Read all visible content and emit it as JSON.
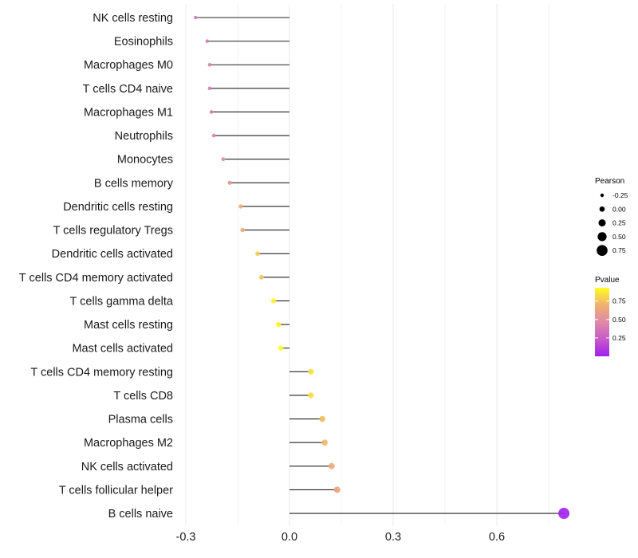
{
  "chart_data": {
    "type": "lollipop",
    "title": "",
    "xlabel": "",
    "ylabel": "",
    "xlim": [
      -0.33,
      0.83
    ],
    "xticks": [
      "-0.3",
      "0.0",
      "0.3",
      "0.6"
    ],
    "xtick_values": [
      -0.3,
      0.0,
      0.3,
      0.6
    ],
    "grid": true,
    "categories": [
      "NK cells resting",
      "Eosinophils",
      "Macrophages M0",
      "T cells CD4 naive",
      "Macrophages M1",
      "Neutrophils",
      "Monocytes",
      "B cells memory",
      "Dendritic cells resting",
      "T cells regulatory  Tregs ",
      "Dendritic cells activated",
      "T cells CD4 memory activated",
      "T cells gamma delta",
      "Mast cells resting",
      "Mast cells activated",
      "T cells CD4 memory resting",
      "T cells CD8",
      "Plasma cells",
      "Macrophages M2",
      "NK cells activated",
      "T cells follicular helper",
      "B cells naive"
    ],
    "pearson": [
      -0.272,
      -0.238,
      -0.231,
      -0.231,
      -0.226,
      -0.219,
      -0.192,
      -0.173,
      -0.141,
      -0.136,
      -0.092,
      -0.081,
      -0.046,
      -0.032,
      -0.025,
      0.062,
      0.062,
      0.095,
      0.102,
      0.122,
      0.138,
      0.794
    ],
    "pvalue": [
      0.36,
      0.38,
      0.4,
      0.4,
      0.4,
      0.42,
      0.5,
      0.55,
      0.68,
      0.68,
      0.78,
      0.76,
      0.88,
      0.9,
      0.92,
      0.84,
      0.84,
      0.74,
      0.72,
      0.66,
      0.62,
      0.001
    ],
    "legend": {
      "position": "right",
      "size_title": "Pearson",
      "size_labels": [
        "-0.25",
        "0.00",
        "0.25",
        "0.50",
        "0.75"
      ],
      "size_values": [
        -0.25,
        0,
        0.25,
        0.5,
        0.75
      ],
      "color_title": "Pvalue",
      "color_labels": [
        "0.75",
        "0.50",
        "0.25"
      ],
      "color_values": [
        0.75,
        0.5,
        0.25
      ],
      "color_range": [
        0,
        0.93
      ],
      "color_stops": [
        "#a020f0",
        "#c85ac8",
        "#e08aa8",
        "#f0b070",
        "#ffff20"
      ]
    }
  }
}
